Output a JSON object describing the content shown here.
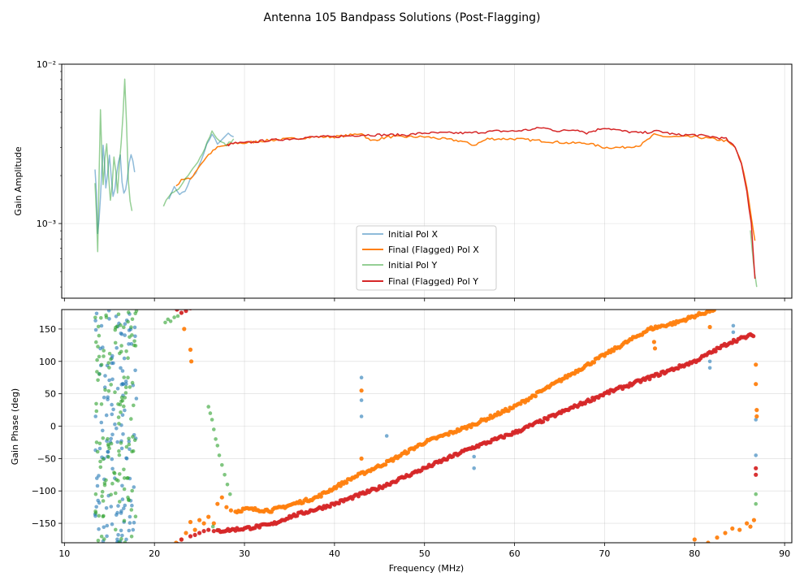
{
  "figure": {
    "title": "Antenna 105 Bandpass Solutions (Post-Flagging)"
  },
  "colors": {
    "initial_x": "#1f77b4",
    "final_x": "#ff7f0e",
    "initial_y": "#2ca02c",
    "final_y": "#d62728",
    "grid": "#b0b0b0"
  },
  "chart_data": [
    {
      "type": "line",
      "title": "",
      "xlabel": "",
      "ylabel": "Gain Amplitude",
      "yscale": "log",
      "xlim": [
        9.7,
        90.8
      ],
      "ylim": [
        0.00034,
        0.01
      ],
      "y_ticks": [
        {
          "value": 0.001,
          "label": "10⁻³"
        },
        {
          "value": 0.01,
          "label": "10⁻²"
        }
      ],
      "grid": true,
      "legend_position": "lower-center",
      "series": [
        {
          "name": "Initial Pol X",
          "key": "initial_x",
          "segments": [
            {
              "x": [
                13.4,
                13.7,
                14.0,
                14.3,
                14.6,
                15.0,
                15.4,
                15.8,
                16.2,
                16.6,
                17.0,
                17.4,
                17.8
              ],
              "y": [
                0.0024,
                0.0009,
                0.0014,
                0.0032,
                0.0016,
                0.0026,
                0.0014,
                0.0021,
                0.0026,
                0.0015,
                0.0018,
                0.0029,
                0.0021
              ]
            },
            {
              "x": [
                21.6,
                22.2,
                22.8,
                23.4,
                24.0,
                24.6,
                25.2,
                25.8,
                26.4,
                27.0,
                27.6,
                28.2,
                28.8
              ],
              "y": [
                0.0014,
                0.0017,
                0.0015,
                0.0016,
                0.0019,
                0.0021,
                0.0025,
                0.0031,
                0.0036,
                0.0032,
                0.0034,
                0.0037,
                0.0035
              ]
            }
          ]
        },
        {
          "name": "Final (Flagged) Pol X",
          "key": "final_x",
          "segments": [
            {
              "x": [
                22.4,
                23.0,
                24.0,
                25.0,
                26.0,
                27.0,
                28.0,
                29.0,
                30.0,
                32.0,
                35.0,
                38.0,
                40.0,
                42.0,
                43.0,
                44.0,
                46.0,
                48.0,
                50.0,
                52.0,
                54.0,
                55.5,
                57.0,
                60.0,
                63.0,
                66.0,
                68.0,
                70.0,
                72.0,
                74.0,
                75.5,
                77.0,
                80.0,
                82.0,
                83.5,
                84.5,
                85.2,
                85.8,
                86.3,
                86.7
              ],
              "y": [
                0.0017,
                0.0019,
                0.0019,
                0.0023,
                0.0027,
                0.003,
                0.0031,
                0.0032,
                0.0032,
                0.0033,
                0.0034,
                0.0035,
                0.0035,
                0.0036,
                0.0037,
                0.0033,
                0.0035,
                0.0035,
                0.0035,
                0.0034,
                0.0033,
                0.0031,
                0.0034,
                0.0034,
                0.0033,
                0.0032,
                0.0032,
                0.003,
                0.003,
                0.0031,
                0.0036,
                0.0035,
                0.0035,
                0.0034,
                0.0033,
                0.003,
                0.0024,
                0.0017,
                0.0011,
                0.00078
              ]
            }
          ]
        },
        {
          "name": "Initial Pol Y",
          "key": "initial_y",
          "segments": [
            {
              "x": [
                13.4,
                13.7,
                14.0,
                14.3,
                14.7,
                15.1,
                15.5,
                15.9,
                16.3,
                16.7,
                17.1,
                17.5
              ],
              "y": [
                0.0019,
                0.0007,
                0.0049,
                0.0017,
                0.0034,
                0.0013,
                0.0028,
                0.0017,
                0.003,
                0.0085,
                0.0018,
                0.0012
              ]
            },
            {
              "x": [
                21.0,
                21.6,
                22.4,
                23.2,
                24.0,
                24.8,
                25.6,
                26.4,
                27.2,
                28.0,
                28.8
              ],
              "y": [
                0.0013,
                0.0015,
                0.0016,
                0.0018,
                0.0021,
                0.0024,
                0.003,
                0.0038,
                0.0033,
                0.0031,
                0.0034
              ]
            },
            {
              "x": [
                86.2,
                86.6,
                86.9
              ],
              "y": [
                0.0009,
                0.00052,
                0.0004
              ]
            }
          ]
        },
        {
          "name": "Final (Flagged) Pol Y",
          "key": "final_y",
          "segments": [
            {
              "x": [
                28.0,
                29.0,
                30.0,
                32.0,
                35.0,
                38.0,
                40.0,
                43.0,
                46.0,
                48.0,
                50.0,
                52.0,
                55.0,
                58.0,
                60.0,
                62.0,
                63.0,
                65.0,
                67.0,
                68.0,
                70.0,
                72.0,
                74.0,
                76.0,
                78.0,
                80.0,
                82.0,
                83.5,
                84.5,
                85.2,
                85.8,
                86.3,
                86.7
              ],
              "y": [
                0.0031,
                0.0032,
                0.0032,
                0.0033,
                0.0034,
                0.0035,
                0.0035,
                0.0036,
                0.0036,
                0.0036,
                0.0037,
                0.0037,
                0.0037,
                0.0038,
                0.0038,
                0.0039,
                0.004,
                0.0038,
                0.0039,
                0.0037,
                0.004,
                0.0038,
                0.0037,
                0.0038,
                0.0036,
                0.0036,
                0.0035,
                0.0034,
                0.003,
                0.0024,
                0.0016,
                0.001,
                0.00045
              ]
            }
          ]
        }
      ]
    },
    {
      "type": "scatter",
      "title": "",
      "xlabel": "Frequency (MHz)",
      "ylabel": "Gain Phase (deg)",
      "xlim": [
        9.7,
        90.8
      ],
      "ylim": [
        -180,
        180
      ],
      "x_ticks": [
        10,
        20,
        30,
        40,
        50,
        60,
        70,
        80,
        90
      ],
      "y_ticks": [
        -150,
        -100,
        -50,
        0,
        50,
        100,
        150
      ],
      "grid": true,
      "series": [
        {
          "name": "Initial Pol X",
          "key": "initial_x",
          "noise": [
            [
              13.4,
              18.0,
              22
            ]
          ],
          "points": [
            [
              43.0,
              75
            ],
            [
              43.0,
              40
            ],
            [
              43.0,
              15
            ],
            [
              45.8,
              -15
            ],
            [
              55.5,
              -47
            ],
            [
              55.5,
              -65
            ],
            [
              81.7,
              100
            ],
            [
              81.7,
              90
            ],
            [
              84.3,
              145
            ],
            [
              84.3,
              155
            ],
            [
              86.8,
              -45
            ],
            [
              86.8,
              10
            ]
          ]
        },
        {
          "name": "Final (Flagged) Pol X",
          "key": "final_x",
          "trend": {
            "x": [
              29.0,
              30.0,
              33.0,
              35.0,
              38.0,
              42.0,
              46.0,
              50.0,
              55.0,
              60.0,
              65.0,
              70.0,
              75.0,
              78.0,
              80.0,
              82.5
            ],
            "y": [
              -132,
              -128,
              -130,
              -122,
              -110,
              -80,
              -55,
              -25,
              0,
              30,
              70,
              110,
              150,
              160,
              170,
              182
            ],
            "count": 110
          },
          "points": [
            [
              22.4,
              -180
            ],
            [
              23.0,
              -175
            ],
            [
              23.5,
              -165
            ],
            [
              24.0,
              -148
            ],
            [
              24.5,
              -160
            ],
            [
              25.0,
              -145
            ],
            [
              25.5,
              -150
            ],
            [
              26.0,
              -140
            ],
            [
              26.6,
              -150
            ],
            [
              27.0,
              -120
            ],
            [
              27.5,
              -110
            ],
            [
              28.0,
              -125
            ],
            [
              28.5,
              -130
            ],
            [
              24.0,
              118
            ],
            [
              24.1,
              100
            ],
            [
              23.3,
              150
            ],
            [
              43.0,
              55
            ],
            [
              43.0,
              -50
            ],
            [
              75.5,
              130
            ],
            [
              75.6,
              120
            ],
            [
              81.7,
              153
            ],
            [
              80.0,
              -175
            ],
            [
              81.5,
              -180
            ],
            [
              82.5,
              -172
            ],
            [
              83.4,
              -165
            ],
            [
              84.2,
              -158
            ],
            [
              85.0,
              -160
            ],
            [
              85.8,
              -150
            ],
            [
              86.2,
              -155
            ],
            [
              86.6,
              -145
            ],
            [
              86.8,
              95
            ],
            [
              86.8,
              65
            ],
            [
              86.9,
              25
            ],
            [
              86.9,
              15
            ]
          ]
        },
        {
          "name": "Initial Pol Y",
          "key": "initial_y",
          "noise": [
            [
              13.4,
              18.0,
              22
            ]
          ],
          "points": [
            [
              21.2,
              160
            ],
            [
              21.5,
              165
            ],
            [
              21.8,
              162
            ],
            [
              22.2,
              168
            ],
            [
              22.6,
              170
            ],
            [
              23.0,
              175
            ],
            [
              26.0,
              30
            ],
            [
              26.2,
              20
            ],
            [
              26.4,
              10
            ],
            [
              26.6,
              -5
            ],
            [
              26.8,
              -20
            ],
            [
              27.0,
              -30
            ],
            [
              27.2,
              -45
            ],
            [
              27.5,
              -60
            ],
            [
              27.8,
              -75
            ],
            [
              28.1,
              -90
            ],
            [
              28.4,
              -105
            ],
            [
              27.0,
              -160
            ],
            [
              26.5,
              -155
            ],
            [
              86.8,
              -120
            ],
            [
              86.8,
              -105
            ]
          ]
        },
        {
          "name": "Final (Flagged) Pol Y",
          "key": "final_y",
          "trend": {
            "x": [
              27.0,
              30.0,
              33.0,
              35.0,
              40.0,
              45.0,
              50.0,
              55.0,
              60.0,
              65.0,
              70.0,
              75.0,
              80.0,
              84.0,
              86.7
            ],
            "y": [
              -162,
              -158,
              -152,
              -140,
              -120,
              -95,
              -65,
              -35,
              -10,
              20,
              50,
              75,
              100,
              130,
              142
            ],
            "count": 120
          },
          "points": [
            [
              22.5,
              180
            ],
            [
              23.0,
              175
            ],
            [
              23.5,
              178
            ],
            [
              24.0,
              182
            ],
            [
              22.6,
              -182
            ],
            [
              23.0,
              -175
            ],
            [
              24.0,
              -170
            ],
            [
              24.5,
              -168
            ],
            [
              25.0,
              -165
            ],
            [
              25.5,
              -162
            ],
            [
              26.0,
              -160
            ],
            [
              26.6,
              -162
            ],
            [
              86.8,
              -65
            ],
            [
              86.8,
              -75
            ]
          ]
        }
      ]
    }
  ]
}
